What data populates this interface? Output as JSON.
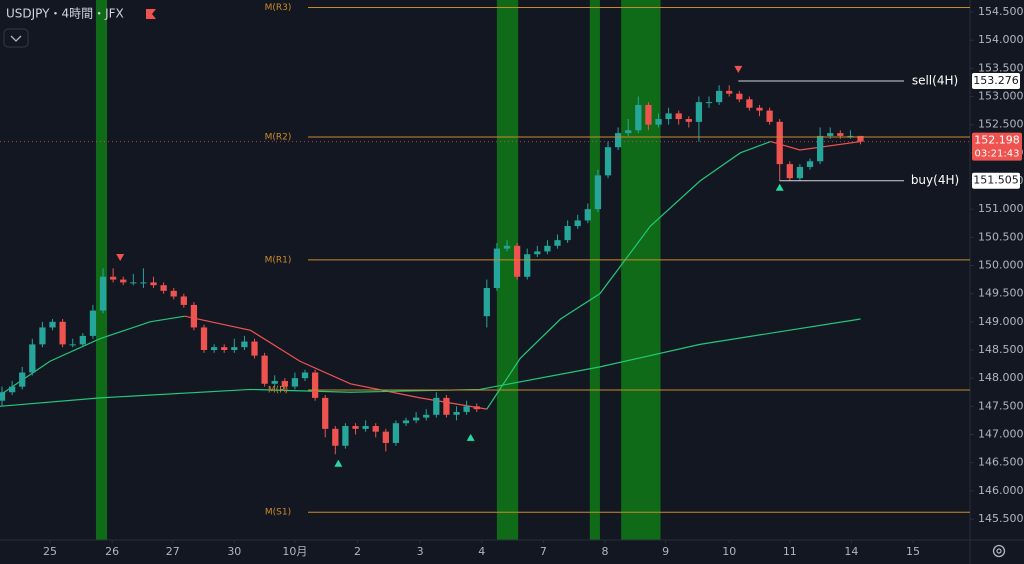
{
  "chart_data": {
    "type": "candlestick",
    "title": "USDJPY・4時間・JFX",
    "xlim": [
      -0.2,
      95.84
    ],
    "xticks": [
      {
        "value": 4.75,
        "label": "25"
      },
      {
        "value": 10.9,
        "label": "26"
      },
      {
        "value": 16.9,
        "label": "27"
      },
      {
        "value": 23.0,
        "label": "30"
      },
      {
        "value": 29.0,
        "label": "10月"
      },
      {
        "value": 35.2,
        "label": "2"
      },
      {
        "value": 41.4,
        "label": "3"
      },
      {
        "value": 47.5,
        "label": "4"
      },
      {
        "value": 53.6,
        "label": "7"
      },
      {
        "value": 59.7,
        "label": "8"
      },
      {
        "value": 65.7,
        "label": "9"
      },
      {
        "value": 72.0,
        "label": "10"
      },
      {
        "value": 78.0,
        "label": "11"
      },
      {
        "value": 84.1,
        "label": "14"
      },
      {
        "value": 90.2,
        "label": "15"
      }
    ],
    "ylim": [
      145.127,
      154.713
    ],
    "yticks": [
      {
        "value": 145.5,
        "label": "145.500"
      },
      {
        "value": 146,
        "label": "146.000"
      },
      {
        "value": 146.5,
        "label": "146.500"
      },
      {
        "value": 147,
        "label": "147.000"
      },
      {
        "value": 147.5,
        "label": "147.500"
      },
      {
        "value": 148,
        "label": "148.000"
      },
      {
        "value": 148.5,
        "label": "148.500"
      },
      {
        "value": 149,
        "label": "149.000"
      },
      {
        "value": 149.5,
        "label": "149.500"
      },
      {
        "value": 150,
        "label": "150.000"
      },
      {
        "value": 150.5,
        "label": "150.500"
      },
      {
        "value": 151,
        "label": "151.000"
      },
      {
        "value": 151.5,
        "label": "151.500"
      },
      {
        "value": 152,
        "label": "152.000"
      },
      {
        "value": 152.5,
        "label": "152.500"
      },
      {
        "value": 153,
        "label": "153.000"
      },
      {
        "value": 153.5,
        "label": "153.500"
      },
      {
        "value": 154,
        "label": "154.000"
      },
      {
        "value": 154.5,
        "label": "154.500"
      }
    ],
    "up_color": "#26a69a",
    "down_color": "#ef5350",
    "open": [
      147.6,
      147.75,
      147.85,
      148.1,
      148.6,
      148.9,
      149.0,
      148.6,
      148.6,
      148.75,
      149.2,
      149.8,
      149.75,
      149.7,
      149.7,
      149.7,
      149.65,
      149.55,
      149.45,
      149.3,
      148.9,
      148.5,
      148.55,
      148.5,
      148.55,
      148.65,
      148.4,
      147.9,
      147.95,
      147.85,
      148.0,
      148.1,
      147.65,
      147.1,
      146.8,
      147.15,
      147.1,
      147.15,
      147.05,
      146.85,
      147.2,
      147.25,
      147.3,
      147.35,
      147.65,
      147.35,
      147.4,
      147.5,
      149.1,
      149.6,
      150.3,
      150.35,
      149.8,
      150.2,
      150.25,
      150.35,
      150.45,
      150.7,
      150.8,
      151.0,
      151.6,
      152.1,
      152.35,
      152.4,
      152.85,
      152.5,
      152.6,
      152.7,
      152.6,
      152.55,
      152.9,
      152.9,
      153.1,
      153.05,
      152.95,
      152.8,
      152.75,
      152.55,
      151.8,
      151.55,
      151.75,
      151.85,
      152.3,
      152.35,
      152.3,
      152.3
    ],
    "high": [
      147.85,
      147.95,
      148.2,
      148.7,
      149.0,
      149.05,
      149.05,
      148.7,
      148.8,
      149.3,
      149.95,
      149.95,
      149.8,
      149.85,
      149.95,
      149.8,
      149.7,
      149.6,
      149.5,
      149.35,
      148.95,
      148.6,
      148.6,
      148.7,
      148.75,
      148.7,
      148.45,
      148.05,
      148.0,
      148.1,
      148.15,
      148.15,
      147.7,
      147.15,
      147.2,
      147.2,
      147.25,
      147.2,
      147.1,
      147.25,
      147.3,
      147.4,
      147.45,
      147.75,
      147.7,
      147.5,
      147.6,
      147.55,
      149.75,
      150.4,
      150.45,
      150.4,
      150.3,
      150.35,
      150.45,
      150.55,
      150.8,
      150.9,
      151.1,
      151.7,
      152.2,
      152.45,
      152.6,
      153.0,
      152.9,
      152.7,
      152.8,
      152.75,
      152.65,
      153.0,
      153.0,
      153.2,
      153.2,
      153.1,
      153.0,
      152.85,
      152.8,
      152.6,
      151.85,
      151.8,
      151.9,
      152.45,
      152.45,
      152.4,
      152.4,
      152.3
    ],
    "low": [
      147.5,
      147.7,
      147.8,
      148.05,
      148.55,
      148.85,
      148.55,
      148.55,
      148.55,
      148.7,
      149.15,
      149.7,
      149.65,
      149.65,
      149.6,
      149.6,
      149.5,
      149.4,
      149.25,
      148.85,
      148.45,
      148.45,
      148.45,
      148.45,
      148.5,
      148.35,
      147.85,
      147.85,
      147.75,
      147.8,
      147.95,
      147.6,
      146.95,
      146.65,
      146.75,
      147.0,
      147.05,
      146.95,
      146.7,
      146.8,
      147.15,
      147.2,
      147.25,
      147.3,
      147.3,
      147.25,
      147.35,
      147.4,
      148.9,
      149.55,
      150.25,
      149.75,
      149.75,
      150.15,
      150.2,
      150.3,
      150.4,
      150.65,
      150.75,
      150.95,
      151.55,
      152.05,
      152.3,
      152.35,
      152.4,
      152.45,
      152.5,
      152.5,
      152.45,
      152.2,
      152.8,
      152.85,
      153.0,
      152.9,
      152.75,
      152.65,
      152.5,
      151.5,
      151.5,
      151.5,
      151.7,
      151.8,
      152.25,
      152.25,
      152.25,
      152.15
    ],
    "close": [
      147.75,
      147.85,
      148.1,
      148.6,
      148.9,
      149.0,
      148.6,
      148.6,
      148.75,
      149.2,
      149.8,
      149.75,
      149.7,
      149.7,
      149.7,
      149.65,
      149.55,
      149.45,
      149.3,
      148.9,
      148.5,
      148.55,
      148.5,
      148.55,
      148.65,
      148.4,
      147.9,
      147.95,
      147.85,
      148.0,
      148.1,
      147.65,
      147.1,
      146.8,
      147.15,
      147.1,
      147.15,
      147.05,
      146.85,
      147.2,
      147.25,
      147.3,
      147.35,
      147.65,
      147.35,
      147.4,
      147.5,
      147.45,
      149.6,
      150.3,
      150.35,
      149.8,
      150.2,
      150.25,
      150.35,
      150.45,
      150.7,
      150.8,
      151.0,
      151.6,
      152.1,
      152.35,
      152.4,
      152.85,
      152.5,
      152.6,
      152.7,
      152.6,
      152.55,
      152.9,
      152.9,
      153.1,
      153.05,
      152.95,
      152.8,
      152.75,
      152.55,
      151.8,
      151.55,
      151.75,
      151.85,
      152.3,
      152.35,
      152.3,
      152.3,
      152.198
    ],
    "lines": [
      {
        "color": "#22c77a",
        "x": [
          -0.2,
          4.75,
          9.7,
          14.65,
          18.1,
          24.6,
          29.5,
          34.5,
          41.4,
          48,
          51.3,
          55.3,
          59.2,
          64.2,
          69.1,
          73.1,
          76.1,
          79,
          85
        ],
        "values": [
          147.7,
          148.3,
          148.7,
          149.0,
          149.1,
          null,
          null,
          null,
          null,
          147.45,
          148.35,
          149.05,
          149.5,
          150.7,
          151.5,
          152.0,
          152.2,
          null,
          null
        ]
      },
      {
        "color": "#ef5350",
        "x": [
          -0.2,
          4.75,
          9.7,
          14.65,
          18.1,
          24.6,
          29.5,
          34.5,
          41.4,
          48,
          51.3,
          55.3,
          59.2,
          64.2,
          69.1,
          73.1,
          76.1,
          79,
          85
        ],
        "values": [
          null,
          null,
          null,
          null,
          149.1,
          148.85,
          148.3,
          147.9,
          147.65,
          147.45,
          null,
          null,
          null,
          null,
          null,
          null,
          152.2,
          152.05,
          152.2
        ]
      },
      {
        "color": "#22c77a",
        "x": [
          -0.2,
          9.7,
          24.6,
          34.5,
          47.3,
          59.2,
          69.1,
          85
        ],
        "values": [
          147.5,
          147.65,
          147.8,
          147.75,
          147.8,
          148.2,
          148.6,
          149.05
        ]
      }
    ],
    "bands": {
      "color": "#0f6b18",
      "ranges": [
        [
          9.3,
          10.4
        ],
        [
          49,
          51.1
        ],
        [
          58.2,
          59.2
        ],
        [
          61.3,
          65.2
        ]
      ]
    },
    "pivots": {
      "color": "#c98a2a",
      "levels": [
        {
          "label": "M(R3)",
          "value": 154.58
        },
        {
          "label": "M(R2)",
          "value": 152.28
        },
        {
          "label": "M(R1)",
          "value": 150.1
        },
        {
          "label": "M(P)",
          "value": 147.79
        },
        {
          "label": "M(S1)",
          "value": 145.62
        }
      ]
    },
    "signals": [
      {
        "kind": "sell",
        "x": 11.7,
        "value": 150.15
      },
      {
        "kind": "sell",
        "x": 72.9,
        "value": 153.49
      },
      {
        "kind": "buy",
        "x": 33.3,
        "value": 146.48
      },
      {
        "kind": "buy",
        "x": 46.4,
        "value": 146.94
      },
      {
        "kind": "buy",
        "x": 77.0,
        "value": 151.38
      }
    ],
    "annotations": [
      {
        "label": "sell(4H)",
        "x": 72.9,
        "value": 153.276
      },
      {
        "label": "buy(4H)",
        "x": 77.0,
        "value": 151.505
      }
    ],
    "last_price": 152.198,
    "countdown": "03:21:43"
  }
}
